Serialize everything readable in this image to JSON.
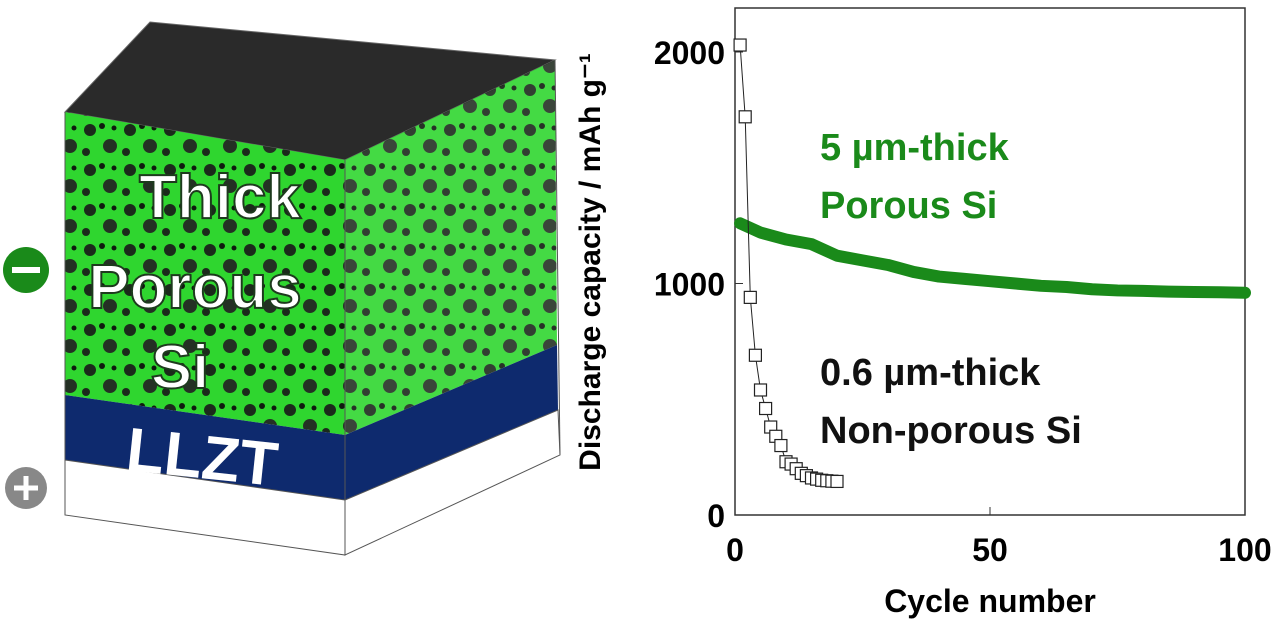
{
  "diagram": {
    "labels": [
      "Thick",
      "Porous",
      "Si"
    ],
    "layer": "LLZT"
  },
  "chart_data": {
    "type": "line",
    "x_label": "Cycle number",
    "y_label": "Discharge capacity / mAh g⁻¹",
    "xlim": [
      0,
      100
    ],
    "xticks": [
      0,
      50,
      100
    ],
    "ylim": [
      0,
      2190
    ],
    "yticks": [
      0,
      1000,
      2000
    ],
    "series": [
      {
        "name": "5 µm-thick Porous Si",
        "color": "#1a8a1a",
        "x": [
          1,
          5,
          10,
          15,
          20,
          25,
          30,
          35,
          40,
          45,
          50,
          55,
          60,
          65,
          70,
          75,
          80,
          85,
          90,
          95,
          100
        ],
        "values": [
          1260,
          1220,
          1190,
          1170,
          1120,
          1100,
          1080,
          1050,
          1030,
          1020,
          1010,
          1000,
          990,
          985,
          975,
          970,
          968,
          965,
          963,
          962,
          960
        ]
      },
      {
        "name": "0.6 µm-thick Non-porous Si",
        "color": "#222222",
        "x": [
          1,
          2,
          3,
          4,
          5,
          6,
          7,
          8,
          9,
          10,
          11,
          12,
          13,
          14,
          15,
          16,
          17,
          18,
          19,
          20
        ],
        "values": [
          2030,
          1720,
          940,
          690,
          540,
          460,
          380,
          340,
          300,
          230,
          220,
          200,
          180,
          170,
          160,
          155,
          150,
          148,
          146,
          145
        ]
      }
    ],
    "annotations": [
      {
        "lines": [
          "5 µm-thick",
          "Porous Si"
        ],
        "color": "#1a8a1a"
      },
      {
        "lines": [
          "0.6 µm-thick",
          "Non-porous Si"
        ],
        "color": "#111111"
      }
    ]
  }
}
